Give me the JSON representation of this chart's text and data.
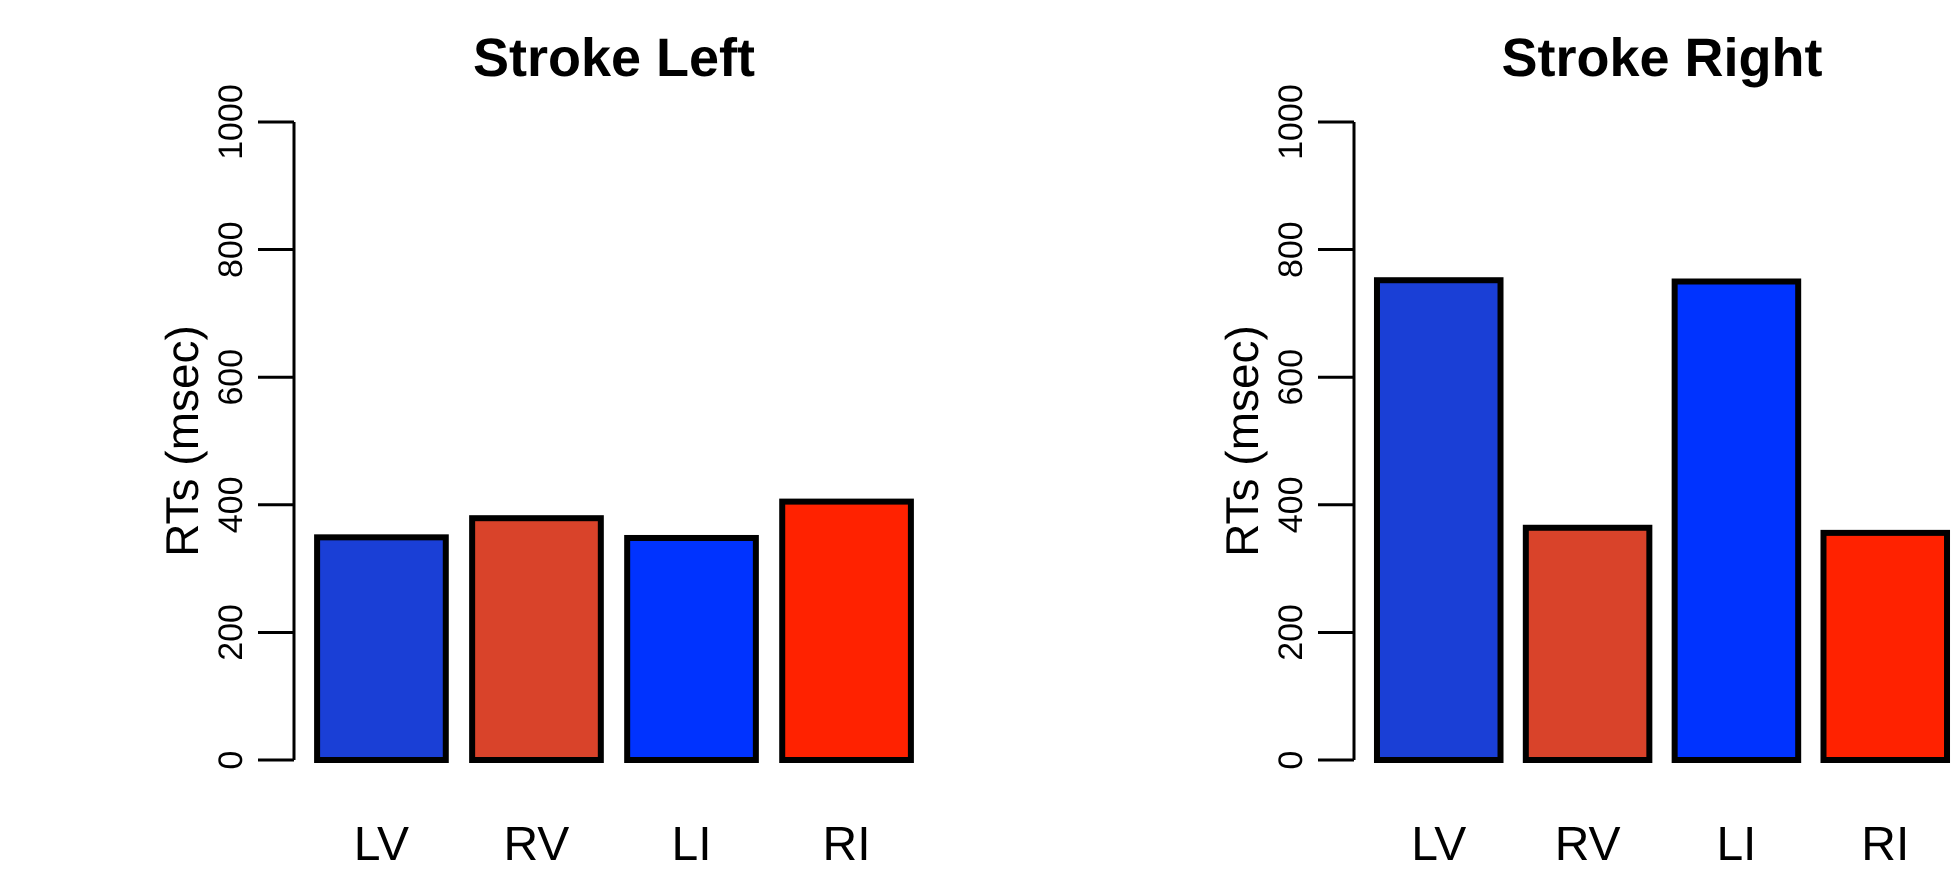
{
  "chart_data": [
    {
      "type": "bar",
      "title": "Stroke Left",
      "ylabel": "RTs (msec)",
      "categories": [
        "LV",
        "RV",
        "LI",
        "RI"
      ],
      "values": [
        349,
        379,
        348,
        405
      ],
      "colors": [
        "#1a3fd6",
        "#d9432a",
        "#0033ff",
        "#ff2200"
      ],
      "ylim": [
        0,
        1000
      ],
      "yticks": [
        0,
        200,
        400,
        600,
        800,
        1000
      ],
      "grid": false
    },
    {
      "type": "bar",
      "title": "Stroke Right",
      "ylabel": "RTs (msec)",
      "categories": [
        "LV",
        "RV",
        "LI",
        "RI"
      ],
      "values": [
        752,
        364,
        750,
        356
      ],
      "colors": [
        "#1a3fd6",
        "#d9432a",
        "#0033ff",
        "#ff2200"
      ],
      "ylim": [
        0,
        1000
      ],
      "yticks": [
        0,
        200,
        400,
        600,
        800,
        1000
      ],
      "grid": false
    }
  ]
}
